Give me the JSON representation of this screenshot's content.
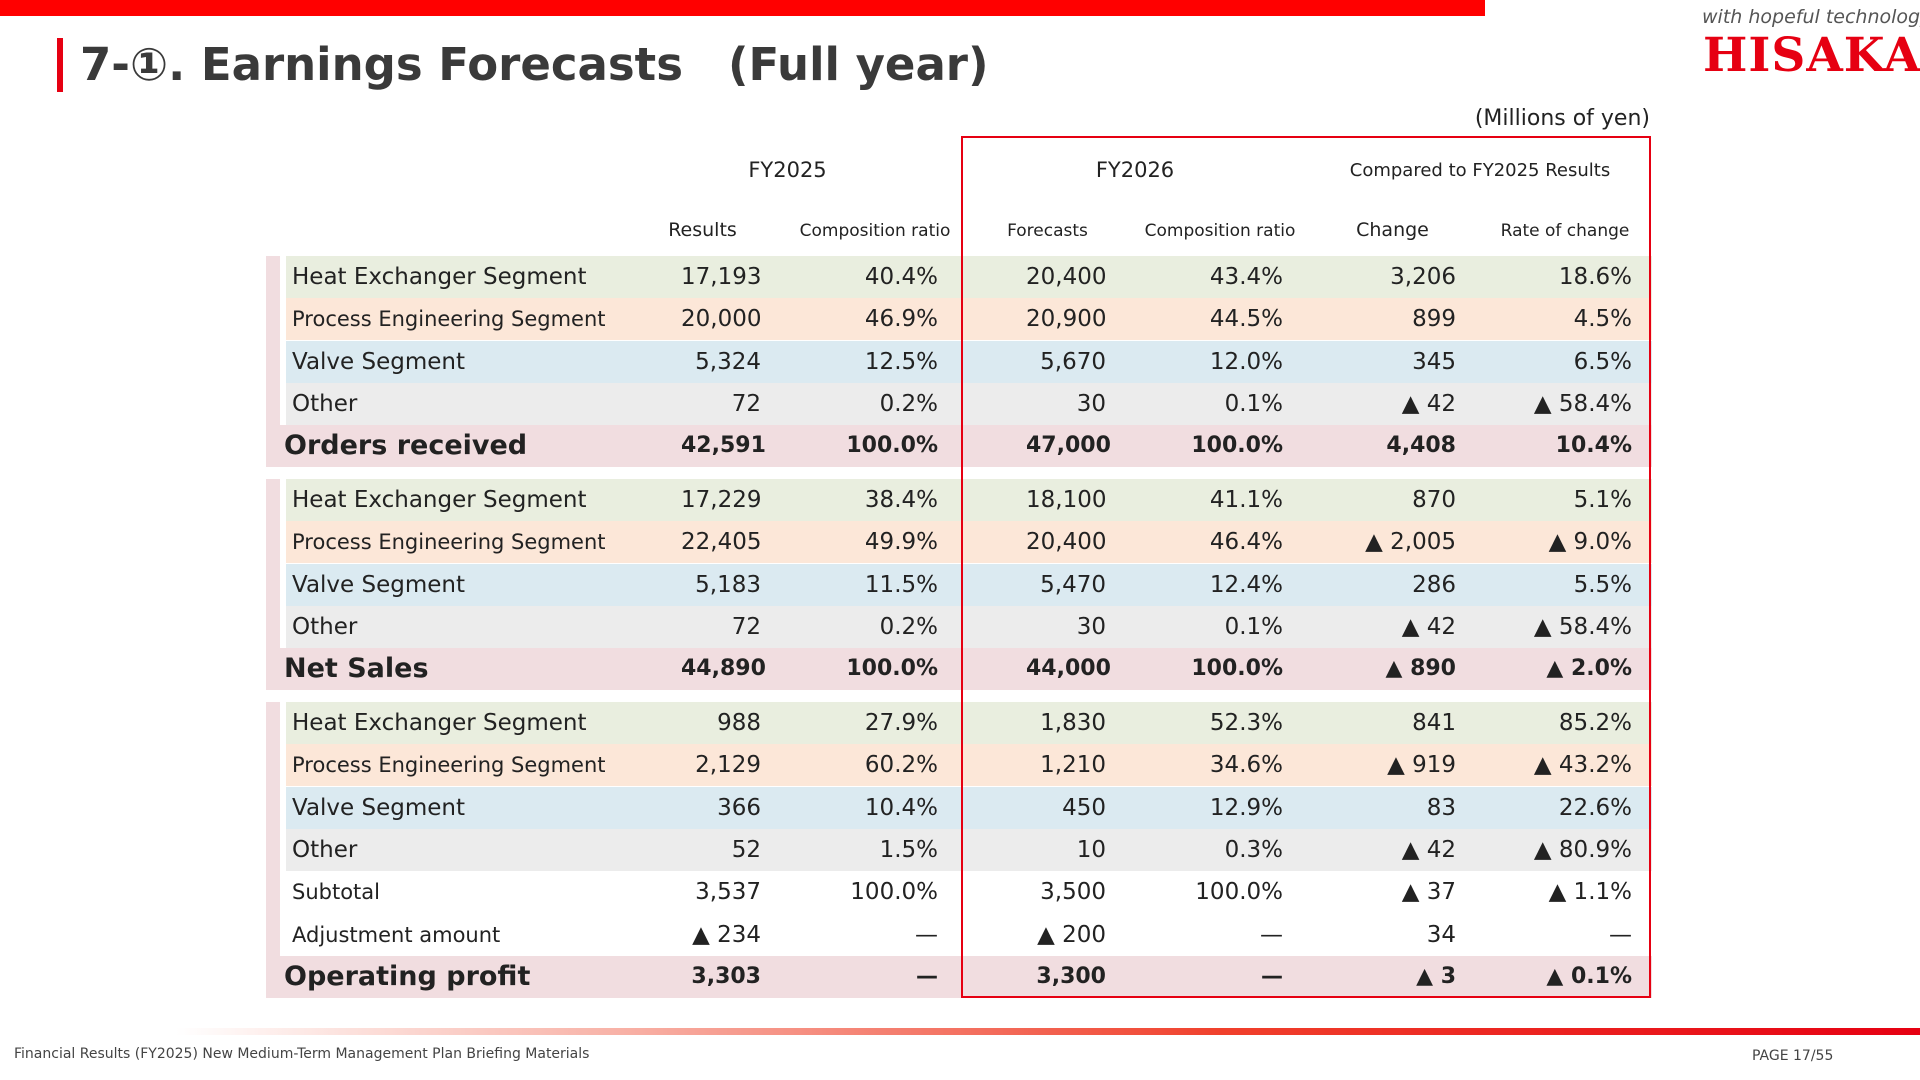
{
  "title": "7-①. Earnings Forecasts　(Full year)",
  "brand": {
    "tagline": "with hopeful technology",
    "logo": "HISAKA"
  },
  "unit": "(Millions of yen)",
  "headers": {
    "fy2025": "FY2025",
    "fy2026": "FY2026",
    "compared": "Compared to FY2025 Results",
    "results": "Results",
    "comp_ratio_1": "Composition ratio",
    "forecasts": "Forecasts",
    "comp_ratio_2": "Composition ratio",
    "change": "Change",
    "rate": "Rate of change"
  },
  "orders": [
    {
      "label": "Heat Exchanger Segment",
      "results": "17,193",
      "ratio25": "40.4%",
      "forecast": "20,400",
      "ratio26": "43.4%",
      "change": "3,206",
      "rate": "18.6%"
    },
    {
      "label": "Process Engineering Segment",
      "results": "20,000",
      "ratio25": "46.9%",
      "forecast": "20,900",
      "ratio26": "44.5%",
      "change": "899",
      "rate": "4.5%"
    },
    {
      "label": "Valve Segment",
      "results": "5,324",
      "ratio25": "12.5%",
      "forecast": "5,670",
      "ratio26": "12.0%",
      "change": "345",
      "rate": "6.5%"
    },
    {
      "label": "Other",
      "results": "72",
      "ratio25": "0.2%",
      "forecast": "30",
      "ratio26": "0.1%",
      "change": "▲ 42",
      "rate": "▲ 58.4%"
    },
    {
      "label": "Orders received",
      "results": "42,591",
      "ratio25": "100.0%",
      "forecast": "47,000",
      "ratio26": "100.0%",
      "change": "4,408",
      "rate": "10.4%"
    }
  ],
  "sales": [
    {
      "label": "Heat Exchanger Segment",
      "results": "17,229",
      "ratio25": "38.4%",
      "forecast": "18,100",
      "ratio26": "41.1%",
      "change": "870",
      "rate": "5.1%"
    },
    {
      "label": "Process Engineering Segment",
      "results": "22,405",
      "ratio25": "49.9%",
      "forecast": "20,400",
      "ratio26": "46.4%",
      "change": "▲ 2,005",
      "rate": "▲ 9.0%"
    },
    {
      "label": "Valve Segment",
      "results": "5,183",
      "ratio25": "11.5%",
      "forecast": "5,470",
      "ratio26": "12.4%",
      "change": "286",
      "rate": "5.5%"
    },
    {
      "label": "Other",
      "results": "72",
      "ratio25": "0.2%",
      "forecast": "30",
      "ratio26": "0.1%",
      "change": "▲ 42",
      "rate": "▲ 58.4%"
    },
    {
      "label": "Net Sales",
      "results": "44,890",
      "ratio25": "100.0%",
      "forecast": "44,000",
      "ratio26": "100.0%",
      "change": "▲ 890",
      "rate": "▲ 2.0%"
    }
  ],
  "profit": [
    {
      "label": "Heat Exchanger Segment",
      "results": "988",
      "ratio25": "27.9%",
      "forecast": "1,830",
      "ratio26": "52.3%",
      "change": "841",
      "rate": "85.2%"
    },
    {
      "label": "Process Engineering Segment",
      "results": "2,129",
      "ratio25": "60.2%",
      "forecast": "1,210",
      "ratio26": "34.6%",
      "change": "▲ 919",
      "rate": "▲ 43.2%"
    },
    {
      "label": "Valve Segment",
      "results": "366",
      "ratio25": "10.4%",
      "forecast": "450",
      "ratio26": "12.9%",
      "change": "83",
      "rate": "22.6%"
    },
    {
      "label": "Other",
      "results": "52",
      "ratio25": "1.5%",
      "forecast": "10",
      "ratio26": "0.3%",
      "change": "▲ 42",
      "rate": "▲ 80.9%"
    },
    {
      "label": "Subtotal",
      "results": "3,537",
      "ratio25": "100.0%",
      "forecast": "3,500",
      "ratio26": "100.0%",
      "change": "▲ 37",
      "rate": "▲ 1.1%"
    },
    {
      "label": "Adjustment amount",
      "results": "▲ 234",
      "ratio25": "—",
      "forecast": "▲ 200",
      "ratio26": "—",
      "change": "34",
      "rate": "—"
    },
    {
      "label": "Operating profit",
      "results": "3,303",
      "ratio25": "—",
      "forecast": "3,300",
      "ratio26": "—",
      "change": "▲ 3",
      "rate": "▲ 0.1%"
    }
  ],
  "footer": "Financial Results (FY2025) New Medium-Term Management Plan Briefing Materials",
  "page_label": "PAGE 17/55"
}
